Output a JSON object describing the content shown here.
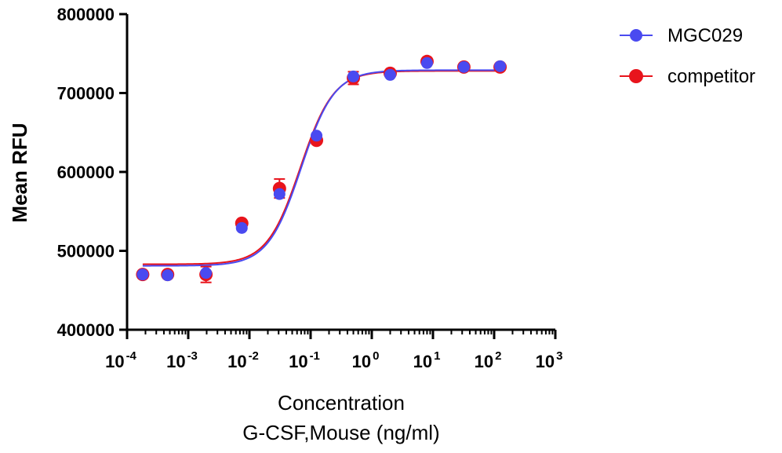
{
  "chart_data": {
    "type": "scatter",
    "xscale": "log",
    "xlim": [
      0.0001,
      1000
    ],
    "ylim": [
      400000,
      800000
    ],
    "yticks": [
      400000,
      500000,
      600000,
      700000,
      800000
    ],
    "ytick_labels": [
      "400000",
      "500000",
      "600000",
      "700000",
      "800000"
    ],
    "xtick_exponents": [
      "-4",
      "-3",
      "-2",
      "-1",
      "0",
      "1",
      "2",
      "3"
    ],
    "xtick_base": "10",
    "ylabel": "Mean RFU",
    "xlabel_line1": "Concentration",
    "xlabel_line2": "G-CSF,Mouse (ng/ml)",
    "legend_position": "top-right",
    "grid": false,
    "x": [
      0.00018,
      0.00046,
      0.00195,
      0.0075,
      0.031,
      0.125,
      0.5,
      2,
      8,
      32,
      125
    ],
    "series": [
      {
        "name": "MGC029",
        "color": "#4a4af0",
        "values": [
          470000,
          469000,
          472000,
          529000,
          572000,
          646000,
          721000,
          723000,
          738000,
          733000,
          734000
        ],
        "fit": {
          "bottom": 481000,
          "top": 729000,
          "ec50": 0.07,
          "hill": 1.6
        }
      },
      {
        "name": "competitor",
        "color": "#e8141c",
        "values": [
          470000,
          470000,
          470000,
          535000,
          579000,
          640000,
          719000,
          725000,
          740000,
          733000,
          733000
        ],
        "error": [
          3000,
          2000,
          10000,
          3000,
          12000,
          3000,
          8000,
          3000,
          3000,
          3000,
          3000
        ],
        "fit": {
          "bottom": 483000,
          "top": 728000,
          "ec50": 0.068,
          "hill": 1.6
        }
      }
    ]
  }
}
